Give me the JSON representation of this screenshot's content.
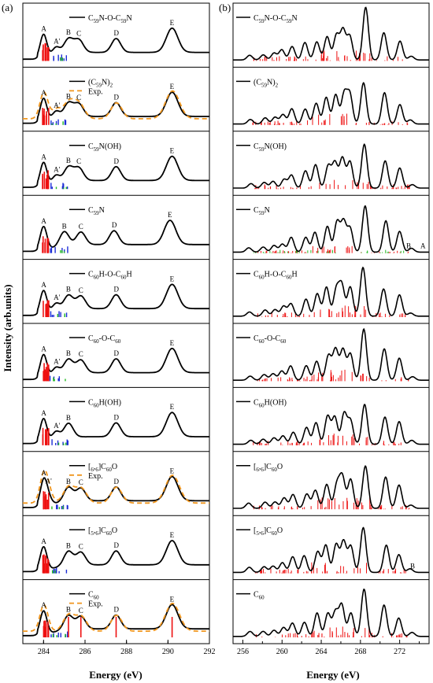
{
  "figure": {
    "panel_a_label": "(a)",
    "panel_b_label": "(b)",
    "ylabel": "Intensity (arb.units)",
    "xlabel_a": "Energy (eV)",
    "xlabel_b": "Energy (eV)",
    "colors": {
      "curve": "#000000",
      "experiment": "#f0961e",
      "stick_red": "#ee1111",
      "stick_blue": "#1b2bd6",
      "stick_green": "#22bb22"
    }
  },
  "chart_data": [
    {
      "type": "line",
      "panel": "a",
      "x_range": [
        283,
        292
      ],
      "x_ticks": [
        "284",
        "286",
        "288",
        "290",
        "292"
      ],
      "xlabel": "Energy (eV)",
      "ylabel": "Intensity (arb.units)",
      "stacked_spectra": [
        {
          "label": "C59N-O-C59N",
          "peaks": {
            "A": 284.0,
            "A'": 284.6,
            "B": 285.2,
            "C": 285.7,
            "D": 287.5,
            "E": 290.2
          },
          "experiment": false
        },
        {
          "label": "(C59N)2",
          "peaks": {
            "A": 284.0,
            "A'": 284.6,
            "B": 285.2,
            "C": 285.7,
            "D": 287.5,
            "E": 290.2
          },
          "experiment": true,
          "experiment_label": "Exp."
        },
        {
          "label": "C59N(OH)",
          "peaks": {
            "A": 284.0,
            "A'": 284.6,
            "B": 285.2,
            "C": 285.7,
            "D": 287.5,
            "E": 290.2
          },
          "experiment": false
        },
        {
          "label": "C59N",
          "peaks": {
            "A": 284.0,
            "B": 285.0,
            "C": 285.8,
            "D": 287.4,
            "E": 290.1
          },
          "experiment": false
        },
        {
          "label": "C60H-O-C60H",
          "peaks": {
            "A": 284.0,
            "A'": 284.6,
            "B": 285.2,
            "C": 285.8,
            "D": 287.5,
            "E": 290.2
          },
          "experiment": false
        },
        {
          "label": "C60-O-C60",
          "peaks": {
            "A": 284.0,
            "A'": 284.6,
            "B": 285.2,
            "C": 285.8,
            "D": 287.5,
            "E": 290.2
          },
          "experiment": false
        },
        {
          "label": "C60H(OH)",
          "peaks": {
            "A": 284.0,
            "A'": 284.6,
            "B": 285.2,
            "D": 287.5,
            "E": 290.2
          },
          "experiment": false
        },
        {
          "label": "[6,6]C60O",
          "peaks": {
            "A": 284.0,
            "A'": 284.2,
            "B": 285.2,
            "C": 285.8,
            "D": 287.5,
            "E": 290.2
          },
          "experiment": true,
          "experiment_label": "Exp."
        },
        {
          "label": "[5,6]C60O",
          "peaks": {
            "A": 284.0,
            "B": 285.2,
            "C": 285.8,
            "D": 287.5,
            "E": 290.2
          },
          "experiment": false
        },
        {
          "label": "C60",
          "peaks": {
            "A": 284.0,
            "B": 285.2,
            "C": 285.8,
            "D": 287.5,
            "E": 290.2
          },
          "experiment": true,
          "experiment_label": "Exp."
        }
      ]
    },
    {
      "type": "line",
      "panel": "b",
      "x_range": [
        255,
        275
      ],
      "x_ticks": [
        "256",
        "260",
        "264",
        "268",
        "272"
      ],
      "xlabel": "Energy (eV)",
      "stacked_spectra": [
        {
          "label": "C59N-O-C59N"
        },
        {
          "label": "(C59N)2"
        },
        {
          "label": "C59N(OH)"
        },
        {
          "label": "C59N",
          "marks": [
            "B",
            "A"
          ]
        },
        {
          "label": "C60H-O-C60H"
        },
        {
          "label": "C60-O-C60"
        },
        {
          "label": "C60H(OH)"
        },
        {
          "label": "[6,6]C60O"
        },
        {
          "label": "[5,6]C60O",
          "marks": [
            "B"
          ]
        },
        {
          "label": "C60"
        }
      ]
    }
  ]
}
